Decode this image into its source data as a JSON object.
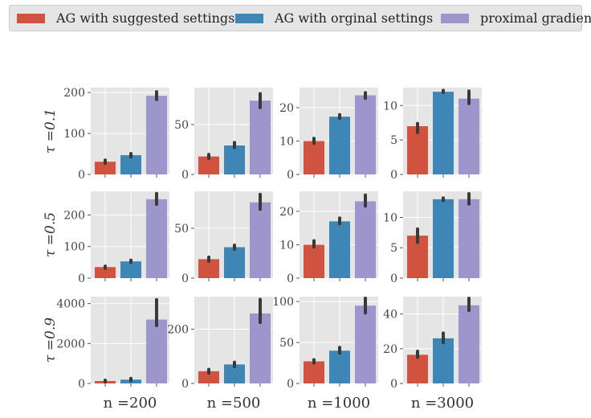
{
  "legend": {
    "entries": [
      {
        "label": "AG with suggested settings",
        "color": "#d1533f"
      },
      {
        "label": "AG with orginal settings",
        "color": "#3d86b5"
      },
      {
        "label": "proximal gradient",
        "color": "#9d96cc"
      }
    ]
  },
  "chart_data": {
    "type": "bar",
    "layout": "grid 3x4 (rows: tau, columns: n)",
    "series_names": [
      "AG with suggested settings",
      "AG with orginal settings",
      "proximal gradient"
    ],
    "colors": [
      "#d1533f",
      "#3d86b5",
      "#9d96cc"
    ],
    "row_labels": [
      "τ =0.1",
      "τ =0.5",
      "τ =0.9"
    ],
    "col_labels": [
      "n =200",
      "n =500",
      "n =1000",
      "n =3000"
    ],
    "grid": true,
    "legend_position": "top",
    "panels": [
      [
        {
          "values": [
            31,
            47,
            192
          ],
          "errors": [
            [
              27,
              35
            ],
            [
              43,
              51
            ],
            [
              183,
              202
            ]
          ],
          "ylim": [
            0,
            212
          ],
          "yticks": [
            0,
            100,
            200
          ],
          "ytick_labels": [
            "0",
            "100",
            "200"
          ]
        },
        {
          "values": [
            18,
            29,
            74
          ],
          "errors": [
            [
              16,
              20
            ],
            [
              27,
              32
            ],
            [
              67,
              81
            ]
          ],
          "ylim": [
            0,
            87
          ],
          "yticks": [
            0,
            50
          ],
          "ytick_labels": [
            "0",
            "50"
          ]
        },
        {
          "values": [
            10,
            17.3,
            23.7
          ],
          "errors": [
            [
              9.3,
              10.8
            ],
            [
              16.8,
              17.9
            ],
            [
              22.8,
              24.5
            ]
          ],
          "ylim": [
            0,
            26
          ],
          "yticks": [
            0,
            10,
            20
          ],
          "ytick_labels": [
            "0",
            "10",
            "20"
          ]
        },
        {
          "values": [
            7,
            12,
            11
          ],
          "errors": [
            [
              6.1,
              7.4
            ],
            [
              11.9,
              12.2
            ],
            [
              10.3,
              12.1
            ]
          ],
          "ylim": [
            0,
            12.6
          ],
          "yticks": [
            0,
            5,
            10
          ],
          "ytick_labels": [
            "0",
            "5",
            "10"
          ]
        }
      ],
      [
        {
          "values": [
            35,
            53,
            250
          ],
          "errors": [
            [
              31,
              38
            ],
            [
              50,
              57
            ],
            [
              234,
              268
            ]
          ],
          "ylim": [
            0,
            275
          ],
          "yticks": [
            0,
            100,
            200
          ],
          "ytick_labels": [
            "0",
            "100",
            "200"
          ]
        },
        {
          "values": [
            19,
            31,
            76
          ],
          "errors": [
            [
              17,
              21
            ],
            [
              29,
              33
            ],
            [
              69,
              84
            ]
          ],
          "ylim": [
            0,
            87
          ],
          "yticks": [
            0,
            50
          ],
          "ytick_labels": [
            "0",
            "50"
          ]
        },
        {
          "values": [
            10,
            17,
            23
          ],
          "errors": [
            [
              9.3,
              11.2
            ],
            [
              16.3,
              18
            ],
            [
              21.6,
              24.9
            ]
          ],
          "ylim": [
            0,
            26
          ],
          "yticks": [
            0,
            10,
            20
          ],
          "ytick_labels": [
            "0",
            "10",
            "20"
          ]
        },
        {
          "values": [
            7,
            13,
            13
          ],
          "errors": [
            [
              5.9,
              8.1
            ],
            [
              12.8,
              13.2
            ],
            [
              12.2,
              13.9
            ]
          ],
          "ylim": [
            0,
            14.3
          ],
          "yticks": [
            0,
            5,
            10
          ],
          "ytick_labels": [
            "0",
            "5",
            "10"
          ]
        }
      ],
      [
        {
          "values": [
            120,
            190,
            3200
          ],
          "errors": [
            [
              80,
              160
            ],
            [
              140,
              250
            ],
            [
              2900,
              4200
            ]
          ],
          "ylim": [
            0,
            4350
          ],
          "yticks": [
            0,
            2000,
            4000
          ],
          "ytick_labels": [
            "0",
            "2000",
            "4000"
          ]
        },
        {
          "values": [
            45,
            70,
            258
          ],
          "errors": [
            [
              38,
              52
            ],
            [
              62,
              78
            ],
            [
              225,
              310
            ]
          ],
          "ylim": [
            0,
            320
          ],
          "yticks": [
            0,
            200
          ],
          "ytick_labels": [
            "0",
            "200"
          ]
        },
        {
          "values": [
            27,
            40,
            95
          ],
          "errors": [
            [
              25,
              29
            ],
            [
              37,
              44
            ],
            [
              86,
              104
            ]
          ],
          "ylim": [
            0,
            106
          ],
          "yticks": [
            0,
            50,
            100
          ],
          "ytick_labels": [
            "0",
            "50",
            "100"
          ]
        },
        {
          "values": [
            16.5,
            26,
            45
          ],
          "errors": [
            [
              15,
              18.5
            ],
            [
              23.5,
              29
            ],
            [
              42,
              49
            ]
          ],
          "ylim": [
            0,
            50
          ],
          "yticks": [
            0,
            20,
            40
          ],
          "ytick_labels": [
            "0",
            "20",
            "40"
          ]
        }
      ]
    ]
  }
}
